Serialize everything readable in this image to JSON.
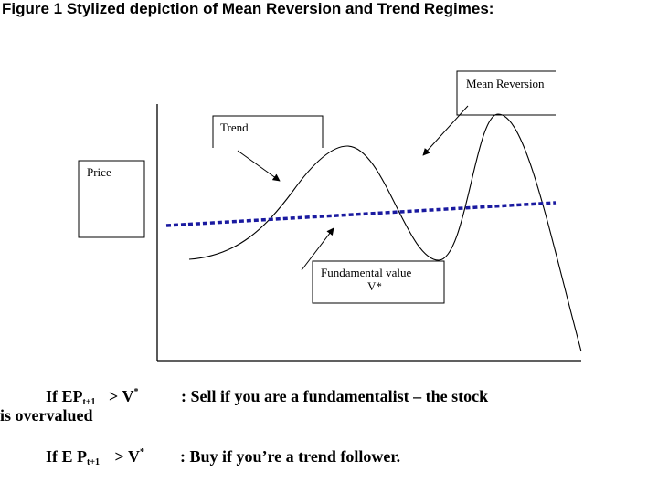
{
  "title": "Figure 1 Stylized depiction of  Mean Reversion and Trend Regimes:",
  "labels": {
    "price": "Price",
    "trend": "Trend",
    "mean_reversion": "Mean Reversion",
    "fundamental_line1": "Fundamental value",
    "fundamental_line2": "V*"
  },
  "rules": {
    "rule1": {
      "prefix": "If  EP",
      "subscript": "t+1",
      "operator": ">  V",
      "superscript": "*",
      "action": ":  Sell if you are a fundamentalist – the stock",
      "continuation": "is overvalued"
    },
    "rule2": {
      "prefix": "If E P",
      "subscript": "t+1",
      "operator": ">  V",
      "superscript": "*",
      "action": ":   Buy if you’re a trend follower."
    }
  },
  "colors": {
    "fundamental_line": "#1a1aa0",
    "ink": "#000000"
  }
}
